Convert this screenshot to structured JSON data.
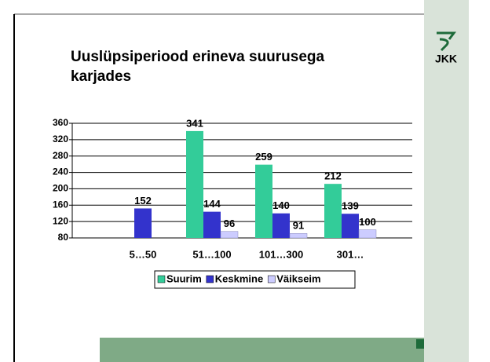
{
  "logo": "JKK",
  "chart_data": {
    "type": "bar",
    "title": "Uuslüpsiperiood erineva suurusega karjades",
    "categories": [
      "5…50",
      "51…100",
      "101…300",
      "301…"
    ],
    "series": [
      {
        "name": "Suurim",
        "color": "#33cc99",
        "values": [
          null,
          341,
          259,
          212
        ]
      },
      {
        "name": "Keskmine",
        "color": "#3333cc",
        "values": [
          152,
          144,
          140,
          139
        ]
      },
      {
        "name": "Väikseim",
        "color": "#ccccff",
        "values": [
          null,
          96,
          91,
          100
        ]
      }
    ],
    "ylim": [
      80,
      360
    ],
    "yticks": [
      80,
      120,
      160,
      200,
      240,
      280,
      320,
      360
    ],
    "grid": true,
    "legend": "bottom"
  }
}
